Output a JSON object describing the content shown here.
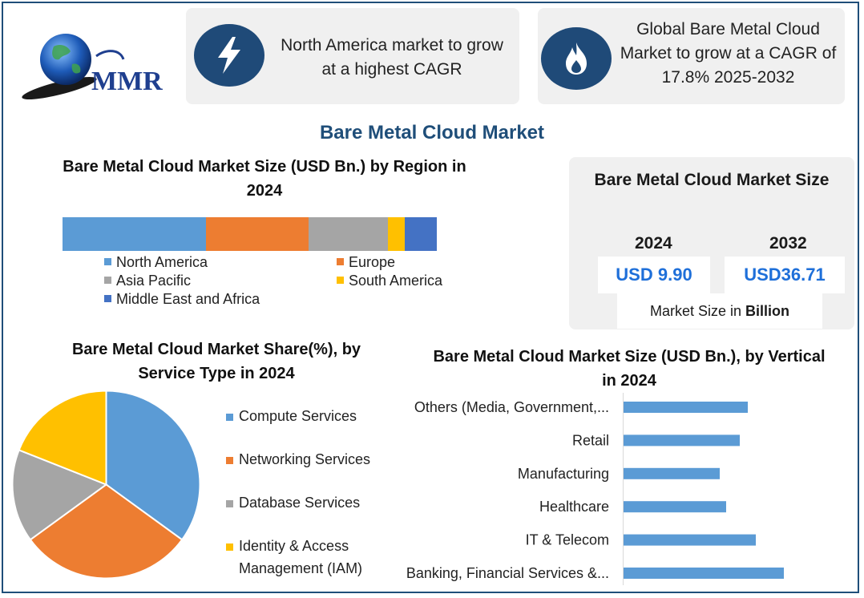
{
  "header": {
    "logo_text": "MMR",
    "card1_text": "North America market to grow at a highest CAGR",
    "card2_text": "Global Bare Metal Cloud Market to grow at a CAGR of 17.8% 2025-2032",
    "card1_icon": "lightning-icon",
    "card2_icon": "flame-icon"
  },
  "main_title": "Bare Metal Cloud Market",
  "market_size": {
    "title": "Bare Metal Cloud Market Size",
    "year1": "2024",
    "year2": "2032",
    "value1": "USD 9.90",
    "value2": "USD36.71",
    "unit_prefix": "Market Size in ",
    "unit_bold": "Billion"
  },
  "colors": {
    "blue": "#5b9bd5",
    "orange": "#ed7d31",
    "gray": "#a5a5a5",
    "yellow": "#ffc000",
    "darkblue": "#4472c4",
    "navy": "#1f4e79"
  },
  "chart_data": [
    {
      "type": "bar",
      "orientation": "horizontal-stacked",
      "title": "Bare Metal Cloud Market Size (USD Bn.) by Region in 2024",
      "series": [
        {
          "name": "North America",
          "values": [
            3.8
          ]
        },
        {
          "name": "Europe",
          "values": [
            2.7
          ]
        },
        {
          "name": "Asia Pacific",
          "values": [
            2.1
          ]
        },
        {
          "name": "South America",
          "values": [
            0.45
          ]
        },
        {
          "name": "Middle East and Africa",
          "values": [
            0.85
          ]
        }
      ],
      "legend_position": "bottom"
    },
    {
      "type": "pie",
      "title": "Bare Metal Cloud Market Share(%), by Service Type in 2024",
      "categories": [
        "Compute Services",
        "Networking Services",
        "Database Services",
        "Identity & Access Management (IAM)"
      ],
      "values": [
        35,
        30,
        16,
        19
      ],
      "legend_position": "right"
    },
    {
      "type": "bar",
      "orientation": "horizontal",
      "title": "Bare Metal Cloud Market Size (USD Bn.), by Vertical in 2024",
      "categories": [
        "Others (Media, Government,...",
        "Retail",
        "Manufacturing",
        "Healthcare",
        "IT & Telecom",
        "Banking, Financial Services &..."
      ],
      "values": [
        1.55,
        1.45,
        1.2,
        1.28,
        1.65,
        2.0
      ],
      "xlim": [
        0,
        2.5
      ]
    }
  ]
}
